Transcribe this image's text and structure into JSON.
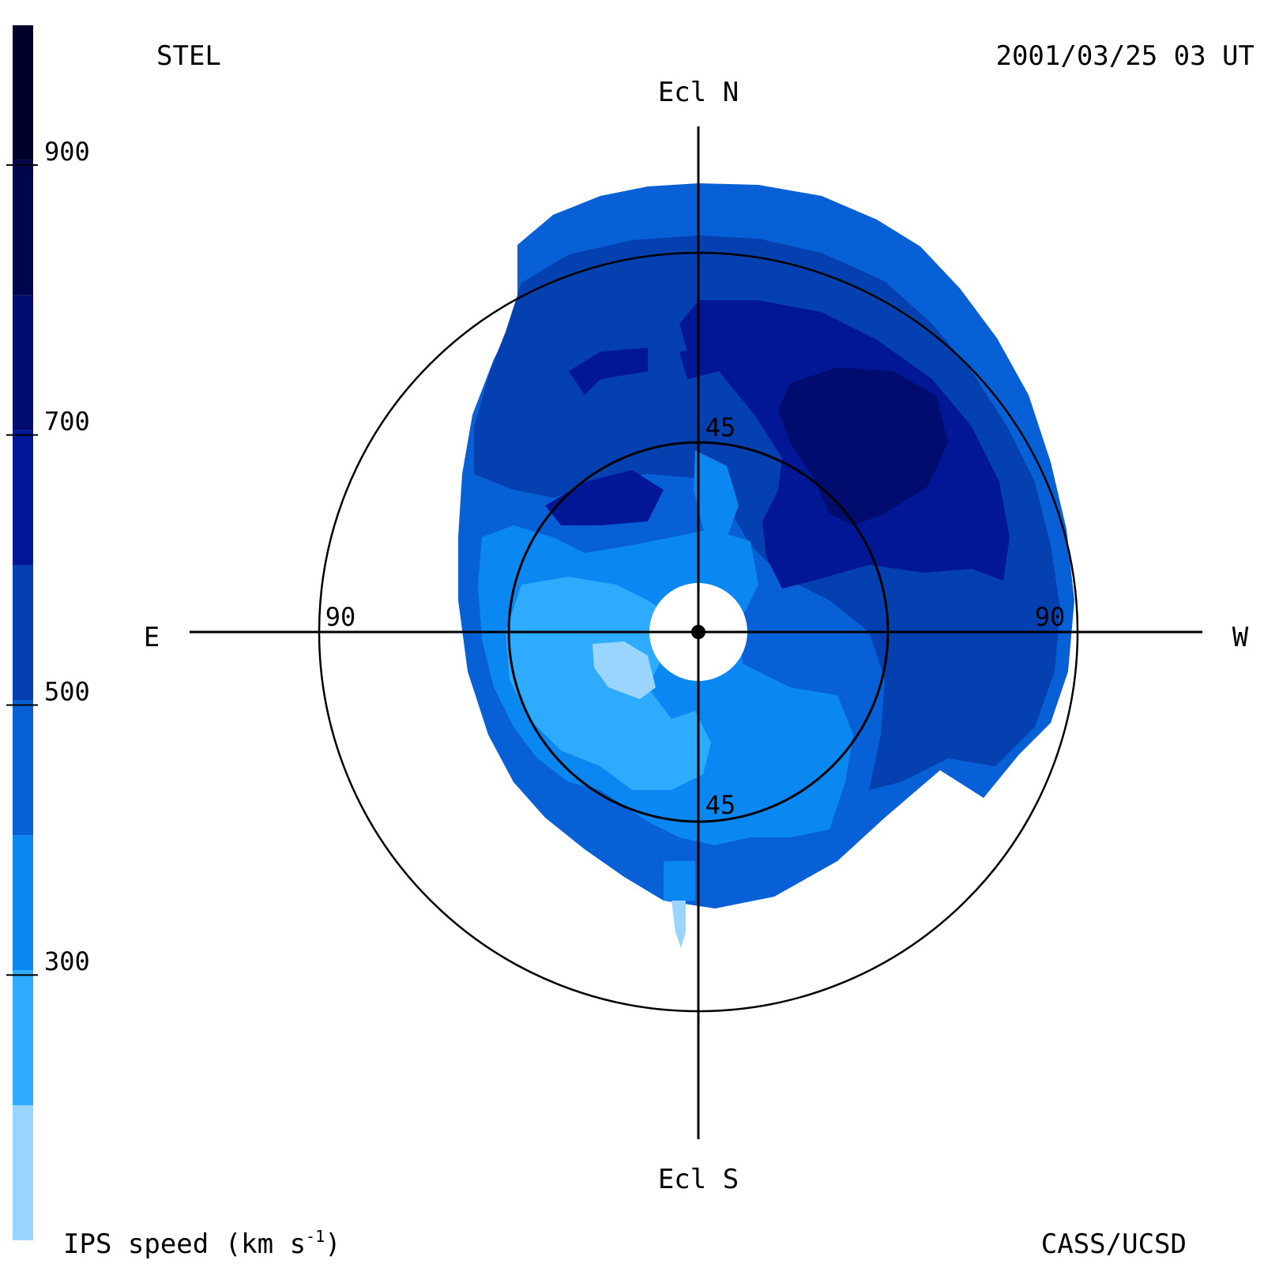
{
  "header": {
    "observatory": "STEL",
    "timestamp": "2001/03/25 03 UT"
  },
  "footer": {
    "credit": "CASS/UCSD"
  },
  "colorbar": {
    "label": "IPS speed (km s",
    "label_superscript": "-1",
    "label_close": ")",
    "ticks": [
      "300",
      "500",
      "700",
      "900"
    ],
    "tick_values": [
      300,
      500,
      700,
      900
    ],
    "bands": [
      {
        "from": 100,
        "to": 200,
        "color": "#99d5ff"
      },
      {
        "from": 200,
        "to": 300,
        "color": "#2eaaff"
      },
      {
        "from": 300,
        "to": 400,
        "color": "#0a87f0"
      },
      {
        "from": 400,
        "to": 500,
        "color": "#0760d6"
      },
      {
        "from": 500,
        "to": 600,
        "color": "#0440b0"
      },
      {
        "from": 600,
        "to": 700,
        "color": "#021796"
      },
      {
        "from": 700,
        "to": 800,
        "color": "#000c6e"
      },
      {
        "from": 800,
        "to": 900,
        "color": "#00064b"
      },
      {
        "from": 900,
        "to": 1000,
        "color": "#00012a"
      }
    ]
  },
  "map": {
    "directions": {
      "north": "Ecl N",
      "south": "Ecl S",
      "east": "E",
      "west": "W"
    },
    "elongation_circles": [
      45,
      90
    ],
    "circle_labels": {
      "inner_top": "45",
      "inner_bottom": "45",
      "outer_left": "90",
      "outer_right": "90"
    },
    "colors": {
      "speed_350": "#0a87f0",
      "speed_450": "#0760d6",
      "speed_550": "#0440b0",
      "speed_650": "#021796",
      "speed_750": "#000c6e",
      "speed_250": "#2eaaff",
      "speed_150": "#99d5ff",
      "sun_disk": "#ffffff",
      "grid": "#000000"
    }
  }
}
